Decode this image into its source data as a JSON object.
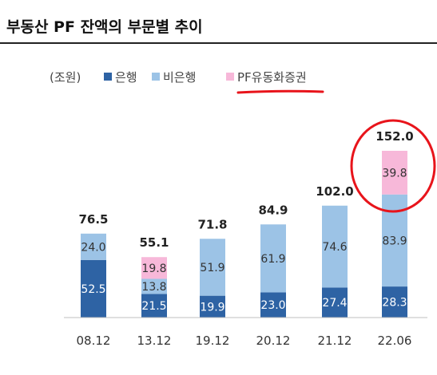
{
  "colors": {
    "bank": "#2E63A4",
    "nonbank": "#9CC3E6",
    "abcp": "#F7B8D9",
    "highlight": "#E8141B"
  },
  "chart_data": {
    "type": "bar",
    "stacked": true,
    "title": "부동산 PF 잔액의 부문별 추이",
    "unit_label": "(조원)",
    "legend_placement": "top-left",
    "grid": false,
    "categories": [
      "08.12",
      "13.12",
      "19.12",
      "20.12",
      "21.12",
      "22.06"
    ],
    "series": [
      {
        "name": "은행",
        "values": [
          52.5,
          21.5,
          19.9,
          23.0,
          27.4,
          28.3
        ]
      },
      {
        "name": "비은행",
        "values": [
          24.0,
          13.8,
          51.9,
          61.9,
          74.6,
          83.9
        ]
      },
      {
        "name": "PF유동화증권",
        "values": [
          null,
          19.8,
          null,
          null,
          null,
          39.8
        ]
      }
    ],
    "totals": [
      76.5,
      55.1,
      71.8,
      84.9,
      102.0,
      152.0
    ],
    "ylim": [
      0,
      160
    ],
    "annotations": [
      {
        "type": "underline",
        "target": "legend:PF유동화증권"
      },
      {
        "type": "circle",
        "target": "bar:22.06 total and PF유동화증권 segment"
      }
    ]
  }
}
